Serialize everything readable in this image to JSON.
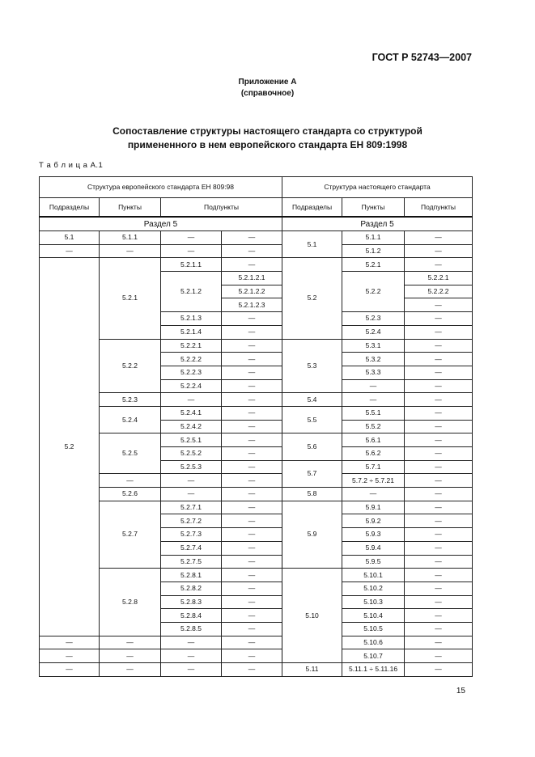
{
  "header": {
    "doc_code": "ГОСТ Р 52743—2007"
  },
  "appendix": {
    "label": "Приложение А",
    "note": "(справочное)"
  },
  "title": {
    "line1": "Сопоставление структуры настоящего стандарта со структурой",
    "line2": "примененного в нем европейского стандарта ЕН 809:1998"
  },
  "table_label": "Т а б л и ц а  А.1",
  "table": {
    "group_headers": [
      "Структура европейского стандарта ЕН 809:98",
      "Структура настоящего стандарта"
    ],
    "column_headers": [
      "Подразделы",
      "Пункты",
      "Подпункты",
      "Подразделы",
      "Пункты",
      "Подпункты"
    ],
    "section_labels": [
      "Раздел 5",
      "Раздел 5"
    ],
    "rows": [
      [
        {
          "t": "5.1"
        },
        {
          "t": "5.1.1"
        },
        {
          "t": "—"
        },
        {
          "t": "—"
        },
        {
          "t": "5.1",
          "rs": 2,
          "r": 1
        },
        {
          "t": "5.1.1"
        },
        {
          "t": "—"
        }
      ],
      [
        {
          "t": "—"
        },
        {
          "t": "—"
        },
        {
          "t": "—"
        },
        {
          "t": "—"
        },
        {
          "t": "5.1.2"
        },
        {
          "t": "—"
        }
      ],
      [
        {
          "t": "5.2",
          "rs": 28
        },
        {
          "t": "5.2.1",
          "rs": 6
        },
        {
          "t": "5.2.1.1"
        },
        {
          "t": "—"
        },
        {
          "t": "5.2",
          "rs": 6,
          "r": 1
        },
        {
          "t": "5.2.1"
        },
        {
          "t": "—"
        }
      ],
      [
        {
          "t": "5.2.1.2",
          "rs": 3
        },
        {
          "t": "5.2.1.2.1"
        },
        {
          "t": "5.2.2",
          "rs": 3
        },
        {
          "t": "5.2.2.1"
        }
      ],
      [
        {
          "t": "5.2.1.2.2"
        },
        {
          "t": "5.2.2.2"
        }
      ],
      [
        {
          "t": "5.2.1.2.3"
        },
        {
          "t": "—"
        }
      ],
      [
        {
          "t": "5.2.1.3"
        },
        {
          "t": "—"
        },
        {
          "t": "5.2.3"
        },
        {
          "t": "—"
        }
      ],
      [
        {
          "t": "5.2.1.4"
        },
        {
          "t": "—"
        },
        {
          "t": "5.2.4"
        },
        {
          "t": "—"
        }
      ],
      [
        {
          "t": "5.2.2",
          "rs": 4
        },
        {
          "t": "5.2.2.1"
        },
        {
          "t": "—"
        },
        {
          "t": "5.3",
          "rs": 4,
          "r": 1
        },
        {
          "t": "5.3.1"
        },
        {
          "t": "—"
        }
      ],
      [
        {
          "t": "5.2.2.2"
        },
        {
          "t": "—"
        },
        {
          "t": "5.3.2"
        },
        {
          "t": "—"
        }
      ],
      [
        {
          "t": "5.2.2.3"
        },
        {
          "t": "—"
        },
        {
          "t": "5.3.3"
        },
        {
          "t": "—"
        }
      ],
      [
        {
          "t": "5.2.2.4"
        },
        {
          "t": "—"
        },
        {
          "t": "—"
        },
        {
          "t": "—"
        }
      ],
      [
        {
          "t": "5.2.3"
        },
        {
          "t": "—"
        },
        {
          "t": "—"
        },
        {
          "t": "5.4",
          "r": 1
        },
        {
          "t": "—"
        },
        {
          "t": "—"
        }
      ],
      [
        {
          "t": "5.2.4",
          "rs": 2
        },
        {
          "t": "5.2.4.1"
        },
        {
          "t": "—"
        },
        {
          "t": "5.5",
          "rs": 2,
          "r": 1
        },
        {
          "t": "5.5.1"
        },
        {
          "t": "—"
        }
      ],
      [
        {
          "t": "5.2.4.2"
        },
        {
          "t": "—"
        },
        {
          "t": "5.5.2"
        },
        {
          "t": "—"
        }
      ],
      [
        {
          "t": "5.2.5",
          "rs": 3
        },
        {
          "t": "5.2.5.1"
        },
        {
          "t": "—"
        },
        {
          "t": "5.6",
          "rs": 2,
          "r": 1
        },
        {
          "t": "5.6.1"
        },
        {
          "t": "—"
        }
      ],
      [
        {
          "t": "5.2.5.2"
        },
        {
          "t": "—"
        },
        {
          "t": "5.6.2"
        },
        {
          "t": "—"
        }
      ],
      [
        {
          "t": "5.2.5.3"
        },
        {
          "t": "—"
        },
        {
          "t": "5.7",
          "rs": 2,
          "r": 1
        },
        {
          "t": "5.7.1"
        },
        {
          "t": "—"
        }
      ],
      [
        {
          "t": "—"
        },
        {
          "t": "—"
        },
        {
          "t": "—"
        },
        {
          "t": "5.7.2 ÷ 5.7.21"
        },
        {
          "t": "—"
        }
      ],
      [
        {
          "t": "5.2.6"
        },
        {
          "t": "—"
        },
        {
          "t": "—"
        },
        {
          "t": "5.8",
          "r": 1
        },
        {
          "t": "—"
        },
        {
          "t": "—"
        }
      ],
      [
        {
          "t": "5.2.7",
          "rs": 5
        },
        {
          "t": "5.2.7.1"
        },
        {
          "t": "—"
        },
        {
          "t": "5.9",
          "rs": 5,
          "r": 1
        },
        {
          "t": "5.9.1"
        },
        {
          "t": "—"
        }
      ],
      [
        {
          "t": "5.2.7.2"
        },
        {
          "t": "—"
        },
        {
          "t": "5.9.2"
        },
        {
          "t": "—"
        }
      ],
      [
        {
          "t": "5.2.7.3"
        },
        {
          "t": "—"
        },
        {
          "t": "5.9.3"
        },
        {
          "t": "—"
        }
      ],
      [
        {
          "t": "5.2.7.4"
        },
        {
          "t": "—"
        },
        {
          "t": "5.9.4"
        },
        {
          "t": "—"
        }
      ],
      [
        {
          "t": "5.2.7.5"
        },
        {
          "t": "—"
        },
        {
          "t": "5.9.5"
        },
        {
          "t": "—"
        }
      ],
      [
        {
          "t": "5.2.8",
          "rs": 5
        },
        {
          "t": "5.2.8.1"
        },
        {
          "t": "—"
        },
        {
          "t": "5.10",
          "rs": 7,
          "r": 1
        },
        {
          "t": "5.10.1"
        },
        {
          "t": "—"
        }
      ],
      [
        {
          "t": "5.2.8.2"
        },
        {
          "t": "—"
        },
        {
          "t": "5.10.2"
        },
        {
          "t": "—"
        }
      ],
      [
        {
          "t": "5.2.8.3"
        },
        {
          "t": "—"
        },
        {
          "t": "5.10.3"
        },
        {
          "t": "—"
        }
      ],
      [
        {
          "t": "5.2.8.4"
        },
        {
          "t": "—"
        },
        {
          "t": "5.10.4"
        },
        {
          "t": "—"
        }
      ],
      [
        {
          "t": "5.2.8.5"
        },
        {
          "t": "—"
        },
        {
          "t": "5.10.5"
        },
        {
          "t": "—"
        }
      ],
      [
        {
          "t": "—"
        },
        {
          "t": "—"
        },
        {
          "t": "—"
        },
        {
          "t": "—"
        },
        {
          "t": "5.10.6"
        },
        {
          "t": "—"
        }
      ],
      [
        {
          "t": "—"
        },
        {
          "t": "—"
        },
        {
          "t": "—"
        },
        {
          "t": "—"
        },
        {
          "t": "5.10.7"
        },
        {
          "t": "—"
        }
      ],
      [
        {
          "t": "—"
        },
        {
          "t": "—"
        },
        {
          "t": "—"
        },
        {
          "t": "—"
        },
        {
          "t": "5.11",
          "r": 1
        },
        {
          "t": "5.11.1 ÷ 5.11.16"
        },
        {
          "t": "—"
        }
      ]
    ]
  },
  "page_number": "15"
}
